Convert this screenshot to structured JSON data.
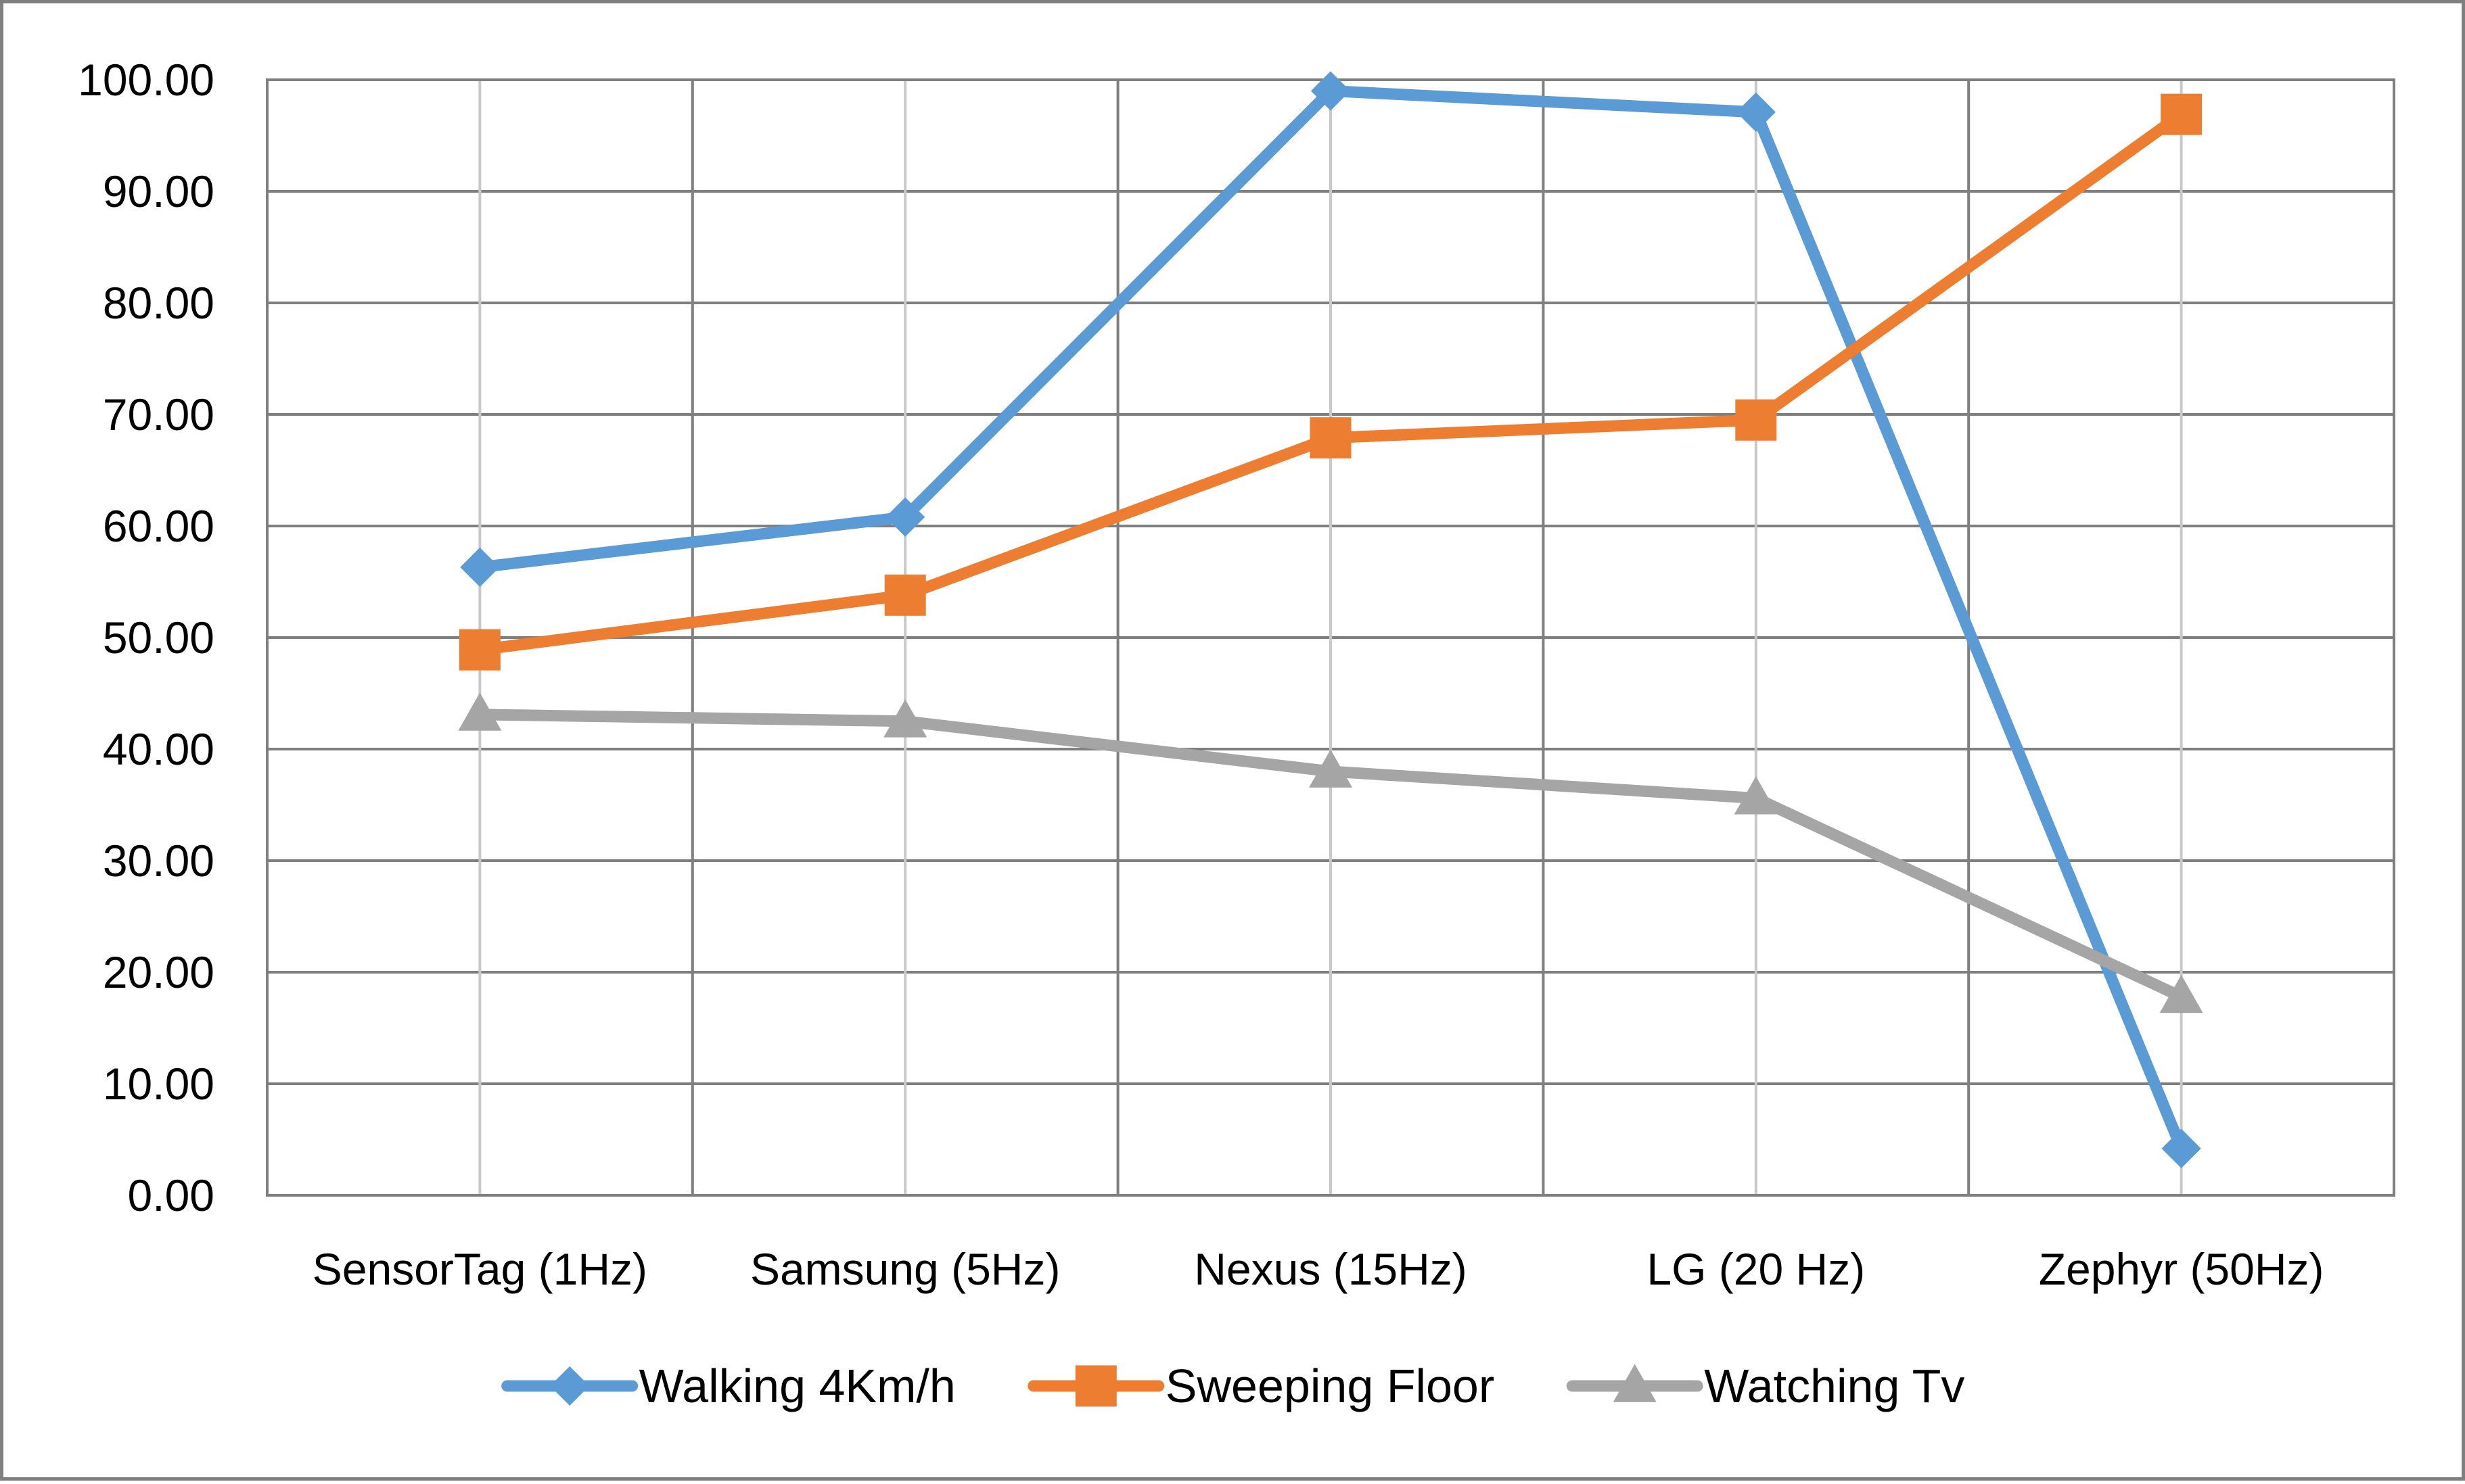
{
  "chart_data": {
    "type": "line",
    "title": "",
    "xlabel": "",
    "ylabel": "",
    "categories": [
      "SensorTag (1Hz)",
      "Samsung (5Hz)",
      "Nexus (15Hz)",
      "LG (20 Hz)",
      "Zephyr (50Hz)"
    ],
    "ylim": [
      0,
      100
    ],
    "yticks": [
      "0.00",
      "10.00",
      "20.00",
      "30.00",
      "40.00",
      "50.00",
      "60.00",
      "70.00",
      "80.00",
      "90.00",
      "100.00"
    ],
    "grid": true,
    "legend_position": "bottom",
    "series": [
      {
        "name": "Walking 4Km/h",
        "color": "#5b9bd5",
        "marker": "diamond",
        "values": [
          56.3,
          60.8,
          99.0,
          97.1,
          4.2
        ]
      },
      {
        "name": "Sweeping Floor",
        "color": "#ed7d31",
        "marker": "square",
        "values": [
          48.9,
          53.8,
          67.9,
          69.5,
          96.9
        ]
      },
      {
        "name": "Watching Tv",
        "color": "#a5a5a5",
        "marker": "triangle",
        "values": [
          43.1,
          42.5,
          38.0,
          35.6,
          17.8
        ]
      }
    ]
  }
}
